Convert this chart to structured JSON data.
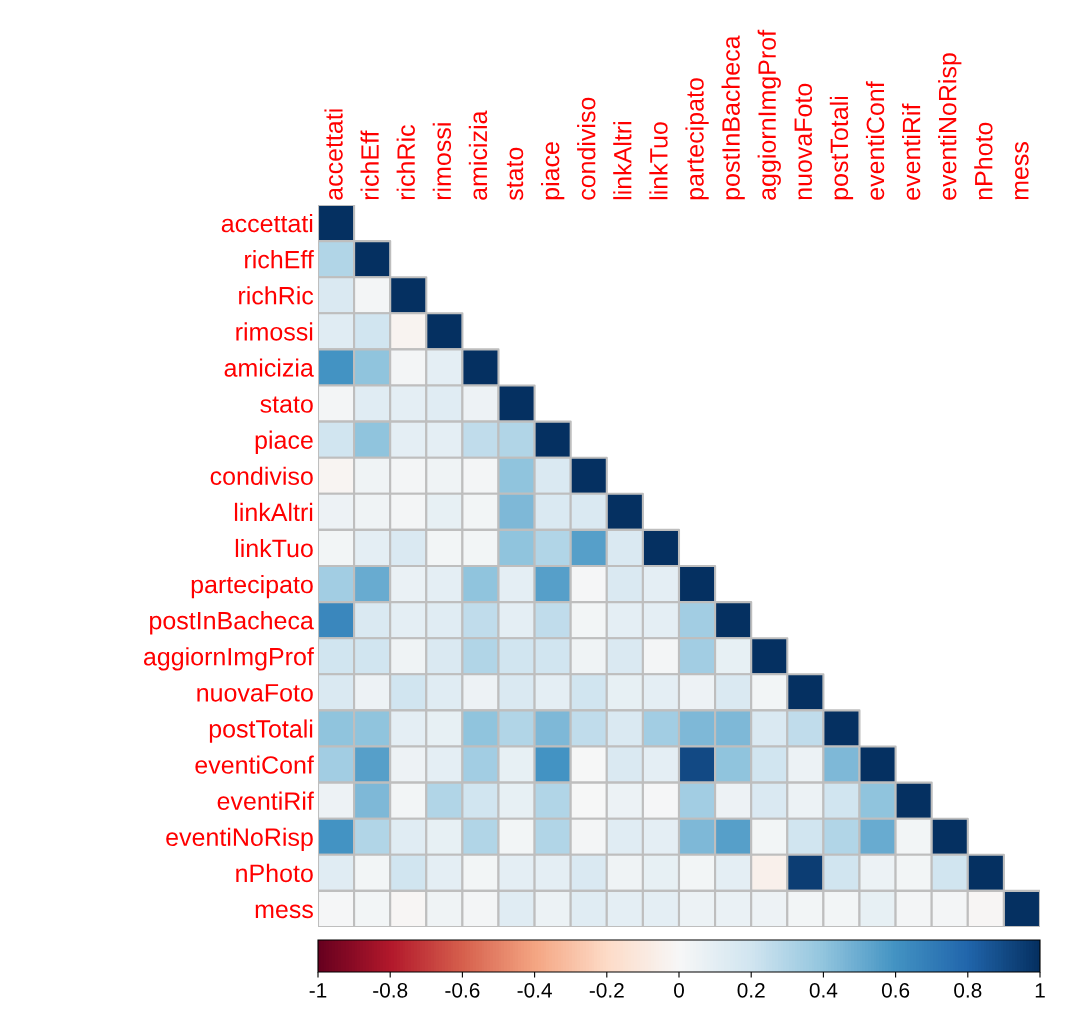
{
  "chart_data": {
    "type": "heatmap",
    "categories": [
      "accettati",
      "richEff",
      "richRic",
      "rimossi",
      "amicizia",
      "stato",
      "piace",
      "condiviso",
      "linkAltri",
      "linkTuo",
      "partecipato",
      "postInBacheca",
      "aggiornImgProf",
      "nuovaFoto",
      "postTotali",
      "eventiConf",
      "eventiRif",
      "eventiNoRisp",
      "nPhoto",
      "mess"
    ],
    "y_categories": [
      "accettati",
      "richEff",
      "richRic",
      "rimossi",
      "amicizia",
      "stato",
      "piace",
      "condiviso",
      "linkAltri",
      "linkTuo",
      "partecipato",
      "postInBacheca",
      "aggiornImgProf",
      "nuovaFoto",
      "postTotali",
      "eventiConf",
      "eventiRif",
      "eventiNoRisp",
      "nPhoto",
      "mess"
    ],
    "cells": [
      [
        1,
        null,
        null,
        null,
        null,
        null,
        null,
        null,
        null,
        null,
        null,
        null,
        null,
        null,
        null,
        null,
        null,
        null,
        null,
        null
      ],
      [
        0.3,
        1,
        null,
        null,
        null,
        null,
        null,
        null,
        null,
        null,
        null,
        null,
        null,
        null,
        null,
        null,
        null,
        null,
        null,
        null
      ],
      [
        0.15,
        0.02,
        1,
        null,
        null,
        null,
        null,
        null,
        null,
        null,
        null,
        null,
        null,
        null,
        null,
        null,
        null,
        null,
        null,
        null
      ],
      [
        0.12,
        0.2,
        -0.03,
        1,
        null,
        null,
        null,
        null,
        null,
        null,
        null,
        null,
        null,
        null,
        null,
        null,
        null,
        null,
        null,
        null
      ],
      [
        0.6,
        0.4,
        0.02,
        0.1,
        1,
        null,
        null,
        null,
        null,
        null,
        null,
        null,
        null,
        null,
        null,
        null,
        null,
        null,
        null,
        null
      ],
      [
        0.02,
        0.12,
        0.1,
        0.12,
        0.05,
        1,
        null,
        null,
        null,
        null,
        null,
        null,
        null,
        null,
        null,
        null,
        null,
        null,
        null,
        null
      ],
      [
        0.2,
        0.4,
        0.1,
        0.1,
        0.25,
        0.3,
        1,
        null,
        null,
        null,
        null,
        null,
        null,
        null,
        null,
        null,
        null,
        null,
        null,
        null
      ],
      [
        -0.02,
        0.04,
        0.02,
        0.04,
        0.02,
        0.4,
        0.15,
        1,
        null,
        null,
        null,
        null,
        null,
        null,
        null,
        null,
        null,
        null,
        null,
        null
      ],
      [
        0.05,
        0.04,
        0.02,
        0.08,
        0.03,
        0.45,
        0.15,
        0.15,
        1,
        null,
        null,
        null,
        null,
        null,
        null,
        null,
        null,
        null,
        null,
        null
      ],
      [
        0.03,
        0.1,
        0.15,
        0.03,
        0.03,
        0.4,
        0.3,
        0.55,
        0.15,
        1,
        null,
        null,
        null,
        null,
        null,
        null,
        null,
        null,
        null,
        null
      ],
      [
        0.35,
        0.5,
        0.07,
        0.1,
        0.4,
        0.1,
        0.55,
        0.01,
        0.15,
        0.1,
        1,
        null,
        null,
        null,
        null,
        null,
        null,
        null,
        null,
        null
      ],
      [
        0.65,
        0.15,
        0.1,
        0.12,
        0.25,
        0.1,
        0.25,
        0.03,
        0.1,
        0.1,
        0.35,
        1,
        null,
        null,
        null,
        null,
        null,
        null,
        null,
        null
      ],
      [
        0.2,
        0.2,
        0.04,
        0.15,
        0.3,
        0.2,
        0.2,
        0.04,
        0.15,
        0.02,
        0.35,
        0.08,
        1,
        null,
        null,
        null,
        null,
        null,
        null,
        null
      ],
      [
        0.15,
        0.05,
        0.2,
        0.12,
        0.05,
        0.15,
        0.1,
        0.2,
        0.08,
        0.1,
        0.05,
        0.15,
        0.03,
        1,
        null,
        null,
        null,
        null,
        null,
        null
      ],
      [
        0.4,
        0.4,
        0.1,
        0.08,
        0.4,
        0.3,
        0.45,
        0.25,
        0.15,
        0.35,
        0.45,
        0.45,
        0.15,
        0.25,
        1,
        null,
        null,
        null,
        null,
        null
      ],
      [
        0.35,
        0.55,
        0.05,
        0.1,
        0.35,
        0.08,
        0.6,
        0.0,
        0.15,
        0.1,
        0.9,
        0.4,
        0.2,
        0.06,
        0.45,
        1,
        null,
        null,
        null,
        null
      ],
      [
        0.05,
        0.45,
        0.03,
        0.3,
        0.2,
        0.08,
        0.3,
        0.0,
        0.06,
        0.01,
        0.35,
        0.05,
        0.15,
        0.06,
        0.2,
        0.4,
        1,
        null,
        null,
        null
      ],
      [
        0.6,
        0.3,
        0.12,
        0.08,
        0.3,
        0.03,
        0.3,
        0.02,
        0.12,
        0.1,
        0.45,
        0.55,
        0.03,
        0.2,
        0.3,
        0.5,
        0.03,
        1,
        null,
        null
      ],
      [
        0.12,
        0.03,
        0.2,
        0.1,
        0.03,
        0.1,
        0.1,
        0.15,
        0.04,
        0.08,
        0.03,
        0.1,
        -0.05,
        0.95,
        0.2,
        0.06,
        0.03,
        0.2,
        1,
        null
      ],
      [
        0.01,
        0.03,
        -0.01,
        0.04,
        0.02,
        0.12,
        0.06,
        0.12,
        0.1,
        0.1,
        0.06,
        0.07,
        0.05,
        0.03,
        0.03,
        0.08,
        0.02,
        0.02,
        -0.01,
        1
      ]
    ],
    "clim": [
      -1,
      1
    ],
    "cticks": [
      -1,
      -0.8,
      -0.6,
      -0.4,
      -0.2,
      0,
      0.2,
      0.4,
      0.6,
      0.8,
      1
    ]
  }
}
